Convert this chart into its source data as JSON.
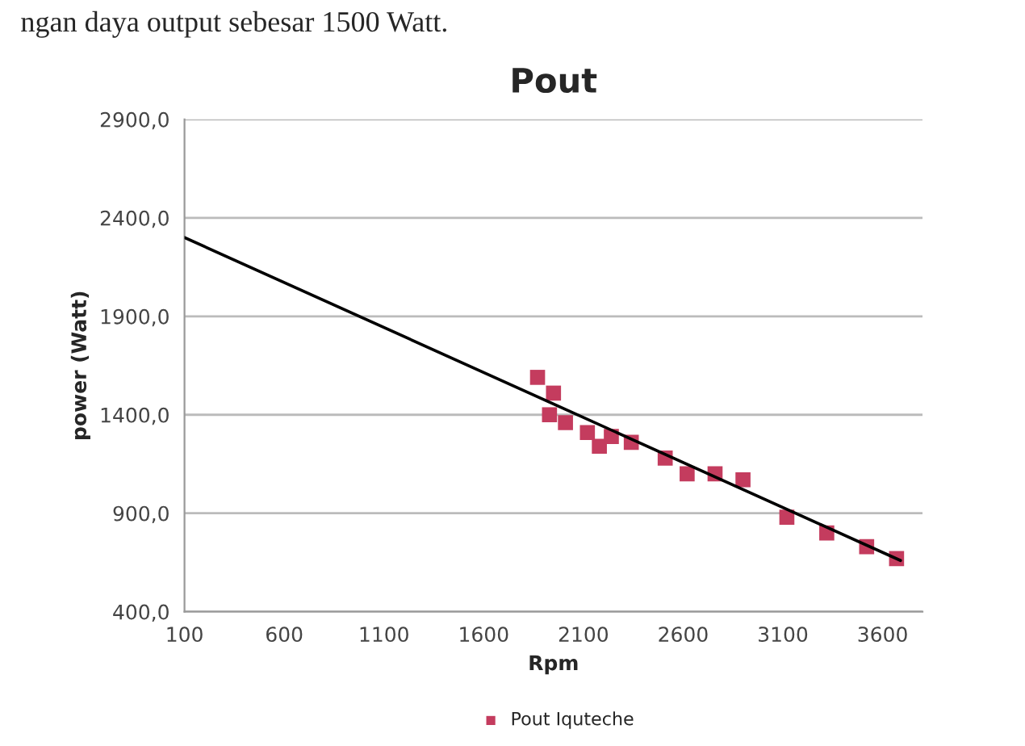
{
  "chart_data": {
    "type": "scatter",
    "title": "Pout",
    "xlabel": "Rpm",
    "ylabel": "power (Watt)",
    "annotations": [
      "ngan daya output sebesar 1500 Watt."
    ],
    "series": [
      {
        "name": "Pout Iquteche",
        "color": "#c43c5e",
        "marker": "square",
        "x": [
          1870,
          1950,
          1930,
          2010,
          2120,
          2180,
          2240,
          2340,
          2510,
          2620,
          2760,
          2900,
          3120,
          3320,
          3520,
          3670
        ],
        "values": [
          1590,
          1510,
          1400,
          1360,
          1310,
          1240,
          1290,
          1260,
          1180,
          1100,
          1100,
          1070,
          880,
          800,
          730,
          670
        ]
      },
      {
        "type": "line",
        "color": "#000000",
        "x": [
          100,
          3690
        ],
        "values": [
          2300,
          660
        ]
      }
    ],
    "xlim": [
      100,
      3800
    ],
    "xticks": [
      100,
      600,
      1100,
      1600,
      2100,
      2600,
      3100,
      3600
    ],
    "ylim": [
      400,
      2900
    ],
    "yticks": [
      {
        "value": 400,
        "label": "400,0"
      },
      {
        "value": 900,
        "label": "900,0"
      },
      {
        "value": 1400,
        "label": "1400,0"
      },
      {
        "value": 1900,
        "label": "1900,0"
      },
      {
        "value": 2400,
        "label": "2400,0"
      },
      {
        "value": 2900,
        "label": "2900,0"
      }
    ],
    "grid": "y",
    "legend": "bottom"
  }
}
